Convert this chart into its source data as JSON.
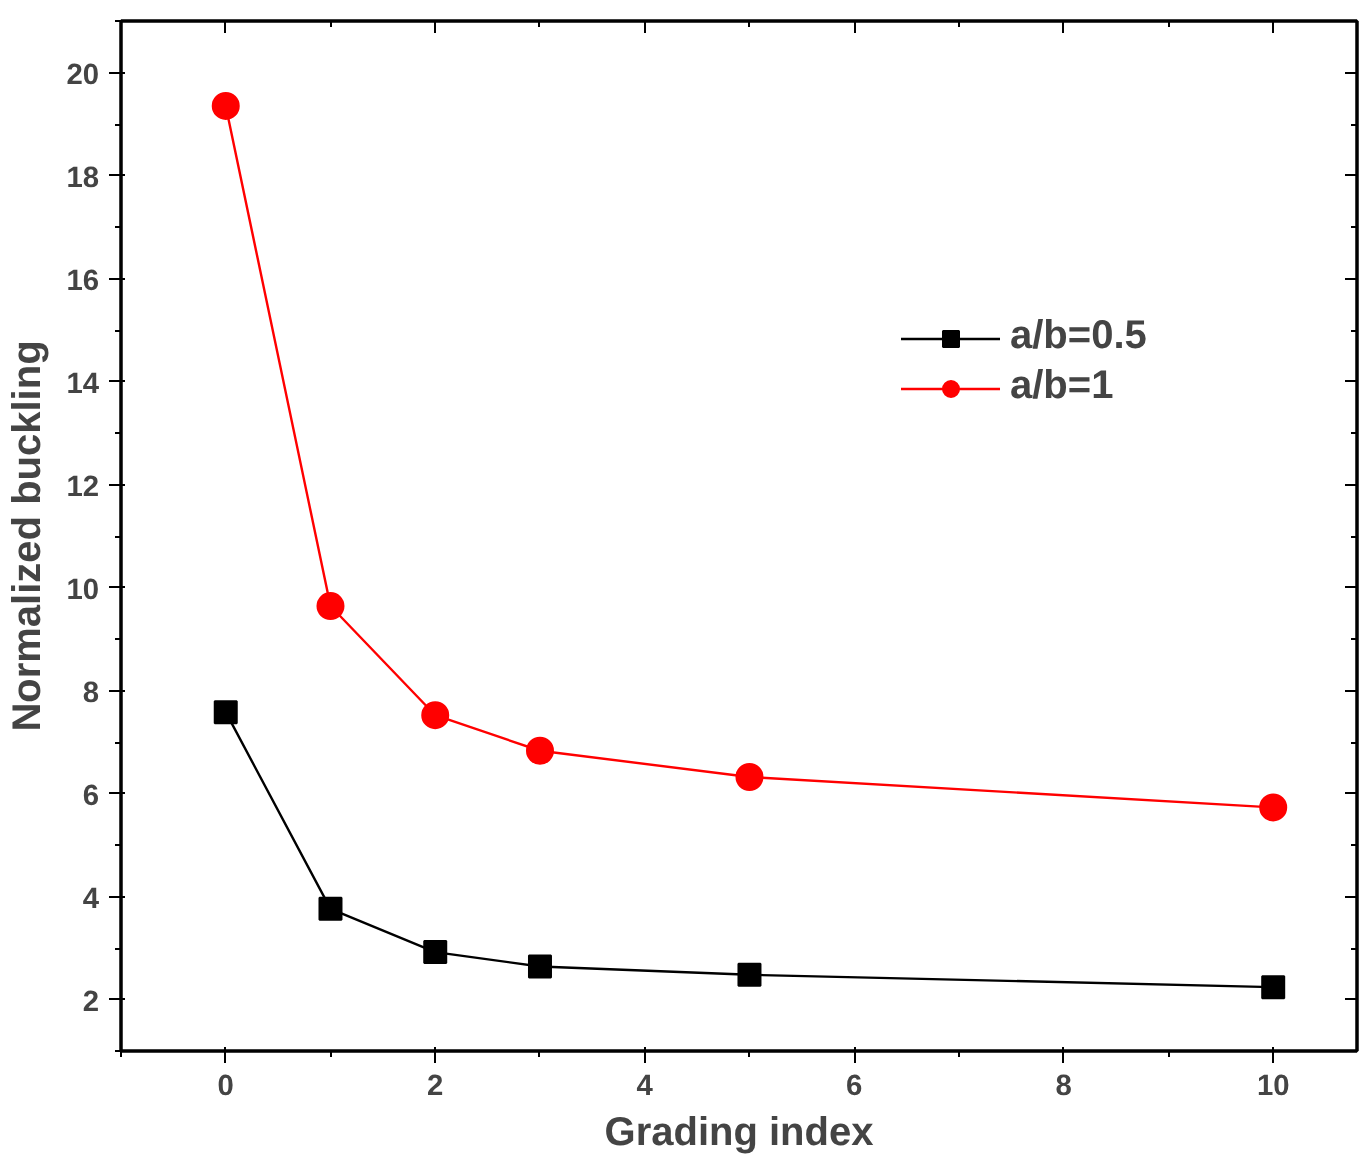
{
  "chart_data": {
    "type": "line",
    "xlabel": "Grading index",
    "ylabel": "Normalized buckling",
    "x": [
      0,
      1,
      2,
      3,
      5,
      10
    ],
    "series": [
      {
        "name": "a/b=0.5",
        "color": "#000000",
        "marker": "square",
        "values": [
          7.58,
          3.76,
          2.92,
          2.64,
          2.48,
          2.24
        ]
      },
      {
        "name": "a/b=1",
        "color": "#ff0000",
        "marker": "circle",
        "values": [
          19.35,
          9.64,
          7.52,
          6.83,
          6.32,
          5.73
        ]
      }
    ],
    "xlim": [
      -1,
      10.8
    ],
    "ylim": [
      1,
      21
    ],
    "xticks": [
      0,
      2,
      4,
      6,
      8,
      10
    ],
    "yticks": [
      2,
      4,
      6,
      8,
      10,
      12,
      14,
      16,
      18,
      20
    ],
    "grid": false,
    "legend": "top right",
    "line_style": "solid"
  }
}
